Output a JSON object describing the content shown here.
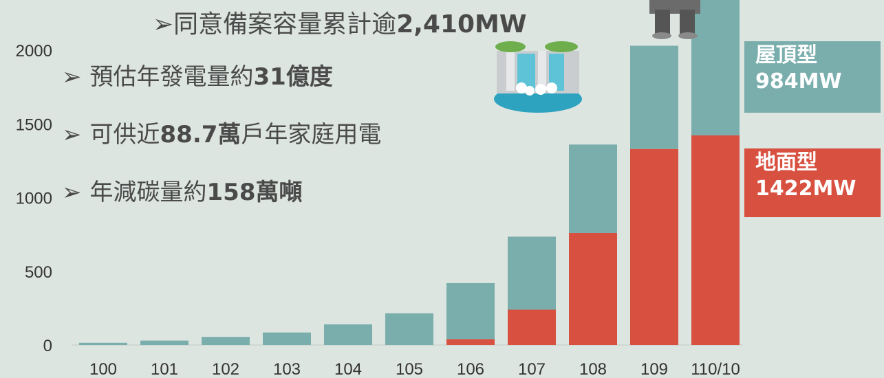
{
  "headline": {
    "arrow": "➢",
    "text": "同意備案容量累計逾",
    "bold": "2,410MW"
  },
  "bullets": [
    {
      "arrow": "➢",
      "pre": "預估年發電量約",
      "bold": "31億度",
      "post": ""
    },
    {
      "arrow": "➢",
      "pre": "可供近",
      "bold": "88.7萬",
      "post": "戶年家庭用電"
    },
    {
      "arrow": "➢",
      "pre": "年減碳量約",
      "bold": "158萬噸",
      "post": ""
    }
  ],
  "legend": {
    "roof": {
      "name": "屋頂型",
      "value": "984MW"
    },
    "ground": {
      "name": "地面型",
      "value": "1422MW"
    }
  },
  "colors": {
    "roof": "#7aaead",
    "ground": "#d85140",
    "background": "#dde5e0"
  },
  "chart_data": {
    "type": "bar",
    "stacked": true,
    "categories": [
      "100",
      "101",
      "102",
      "103",
      "104",
      "105",
      "106",
      "107",
      "108",
      "109",
      "110/10"
    ],
    "series": [
      {
        "name": "地面型",
        "values": [
          0,
          0,
          0,
          0,
          0,
          0,
          40,
          240,
          760,
          1330,
          1422
        ]
      },
      {
        "name": "屋頂型",
        "values": [
          15,
          30,
          55,
          85,
          140,
          215,
          380,
          495,
          600,
          700,
          984
        ]
      }
    ],
    "yticks": [
      0,
      500,
      1000,
      1500,
      2000
    ],
    "ylim": [
      0,
      2400
    ],
    "grid": false
  }
}
